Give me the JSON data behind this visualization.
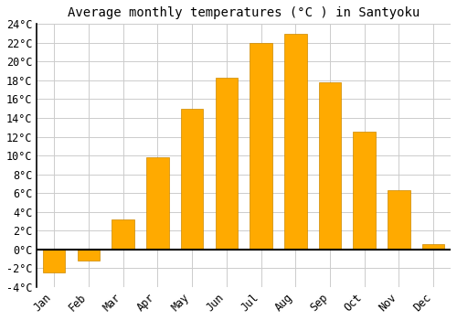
{
  "title": "Average monthly temperatures (°C ) in Santyoku",
  "months": [
    "Jan",
    "Feb",
    "Mar",
    "Apr",
    "May",
    "Jun",
    "Jul",
    "Aug",
    "Sep",
    "Oct",
    "Nov",
    "Dec"
  ],
  "values": [
    -2.5,
    -1.2,
    3.2,
    9.8,
    15.0,
    18.3,
    22.0,
    23.0,
    17.8,
    12.5,
    6.3,
    0.6
  ],
  "bar_color": "#FFAA00",
  "bar_edge_color": "#CC8800",
  "ylim": [
    -4,
    24
  ],
  "background_color": "#ffffff",
  "grid_color": "#cccccc",
  "title_fontsize": 10,
  "tick_fontsize": 8.5
}
